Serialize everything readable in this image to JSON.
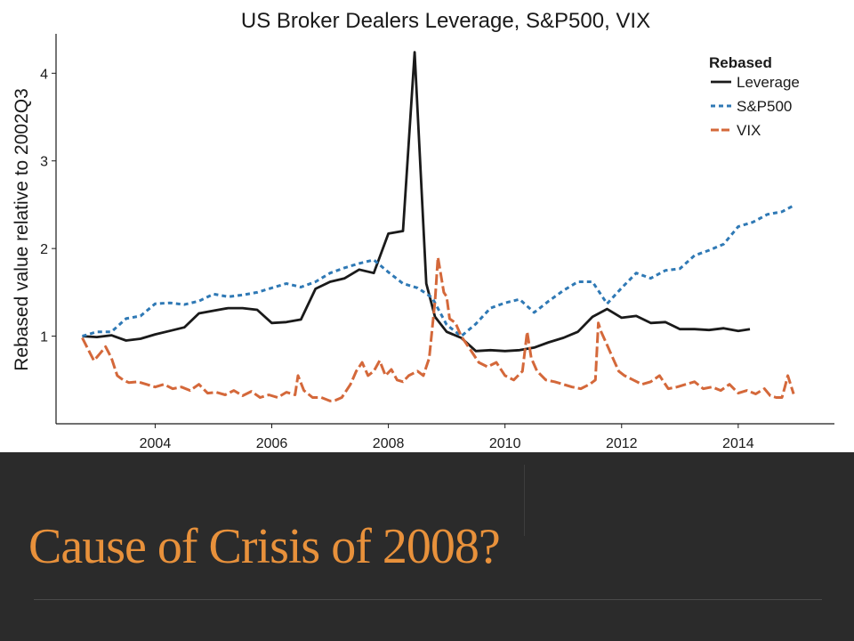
{
  "slide": {
    "title": "Cause of Crisis of 2008?"
  },
  "chart_data": {
    "type": "line",
    "title": "US Broker Dealers Leverage, S&P500, VIX",
    "xlabel": "",
    "ylabel": "Rebased value relative to 2002Q3",
    "xlim": [
      2002.3,
      2015.65
    ],
    "ylim": [
      0,
      4.45
    ],
    "x_ticks": [
      2004,
      2006,
      2008,
      2010,
      2012,
      2014
    ],
    "x_tick_labels": [
      "2004",
      "2006",
      "2008",
      "2010",
      "2012",
      "2014"
    ],
    "y_ticks": [
      1,
      2,
      3,
      4
    ],
    "y_tick_labels": [
      "1",
      "2",
      "3",
      "4"
    ],
    "grid": false,
    "legend": {
      "title": "Rebased",
      "position": "top-right",
      "entries": [
        "Leverage",
        "S&P500",
        "VIX"
      ]
    },
    "series": [
      {
        "name": "Leverage",
        "color": "#1a1a1a",
        "style": "solid",
        "x": [
          2002.75,
          2003.0,
          2003.25,
          2003.5,
          2003.75,
          2004.0,
          2004.25,
          2004.5,
          2004.75,
          2005.0,
          2005.25,
          2005.5,
          2005.75,
          2006.0,
          2006.25,
          2006.5,
          2006.75,
          2007.0,
          2007.25,
          2007.5,
          2007.75,
          2008.0,
          2008.25,
          2008.45,
          2008.65,
          2008.8,
          2009.0,
          2009.25,
          2009.5,
          2009.75,
          2010.0,
          2010.25,
          2010.5,
          2010.75,
          2011.0,
          2011.25,
          2011.5,
          2011.75,
          2012.0,
          2012.25,
          2012.5,
          2012.75,
          2013.0,
          2013.25,
          2013.5,
          2013.75,
          2014.0,
          2014.2
        ],
        "values": [
          1.0,
          0.99,
          1.01,
          0.95,
          0.97,
          1.02,
          1.06,
          1.1,
          1.26,
          1.29,
          1.32,
          1.32,
          1.3,
          1.15,
          1.16,
          1.19,
          1.54,
          1.62,
          1.66,
          1.76,
          1.72,
          2.17,
          2.2,
          4.24,
          1.6,
          1.22,
          1.05,
          0.98,
          0.83,
          0.84,
          0.83,
          0.84,
          0.87,
          0.93,
          0.98,
          1.05,
          1.22,
          1.31,
          1.21,
          1.23,
          1.15,
          1.16,
          1.08,
          1.08,
          1.07,
          1.09,
          1.06,
          1.08
        ]
      },
      {
        "name": "S&P500",
        "color": "#2f79b5",
        "style": "dashed",
        "x": [
          2002.75,
          2003.0,
          2003.25,
          2003.5,
          2003.75,
          2004.0,
          2004.25,
          2004.5,
          2004.75,
          2005.0,
          2005.25,
          2005.5,
          2005.75,
          2006.0,
          2006.25,
          2006.5,
          2006.75,
          2007.0,
          2007.25,
          2007.5,
          2007.75,
          2008.0,
          2008.25,
          2008.5,
          2008.75,
          2009.0,
          2009.25,
          2009.5,
          2009.75,
          2010.0,
          2010.25,
          2010.5,
          2010.75,
          2011.0,
          2011.25,
          2011.5,
          2011.75,
          2012.0,
          2012.25,
          2012.5,
          2012.75,
          2013.0,
          2013.25,
          2013.5,
          2013.75,
          2014.0,
          2014.25,
          2014.5,
          2014.75,
          2014.95
        ],
        "values": [
          1.0,
          1.05,
          1.05,
          1.2,
          1.23,
          1.37,
          1.38,
          1.36,
          1.4,
          1.48,
          1.45,
          1.47,
          1.5,
          1.55,
          1.6,
          1.56,
          1.62,
          1.72,
          1.78,
          1.83,
          1.87,
          1.73,
          1.6,
          1.55,
          1.44,
          1.13,
          1.0,
          1.14,
          1.32,
          1.38,
          1.42,
          1.27,
          1.4,
          1.52,
          1.62,
          1.62,
          1.37,
          1.55,
          1.72,
          1.66,
          1.75,
          1.77,
          1.92,
          1.98,
          2.05,
          2.25,
          2.3,
          2.39,
          2.42,
          2.49
        ]
      },
      {
        "name": "VIX",
        "color": "#d4683a",
        "style": "longdash",
        "x": [
          2002.75,
          2002.85,
          2002.95,
          2003.05,
          2003.15,
          2003.25,
          2003.35,
          2003.45,
          2003.55,
          2003.7,
          2003.85,
          2004.0,
          2004.15,
          2004.3,
          2004.45,
          2004.6,
          2004.75,
          2004.9,
          2005.05,
          2005.2,
          2005.35,
          2005.5,
          2005.65,
          2005.8,
          2005.95,
          2006.1,
          2006.25,
          2006.4,
          2006.45,
          2006.55,
          2006.7,
          2006.85,
          2007.0,
          2007.1,
          2007.2,
          2007.35,
          2007.45,
          2007.55,
          2007.65,
          2007.75,
          2007.85,
          2007.95,
          2008.05,
          2008.15,
          2008.25,
          2008.35,
          2008.5,
          2008.6,
          2008.7,
          2008.8,
          2008.85,
          2008.9,
          2008.95,
          2009.0,
          2009.05,
          2009.15,
          2009.25,
          2009.4,
          2009.55,
          2009.7,
          2009.85,
          2010.0,
          2010.15,
          2010.3,
          2010.38,
          2010.45,
          2010.55,
          2010.7,
          2010.85,
          2011.0,
          2011.15,
          2011.3,
          2011.45,
          2011.55,
          2011.6,
          2011.65,
          2011.75,
          2011.85,
          2011.95,
          2012.05,
          2012.2,
          2012.35,
          2012.5,
          2012.65,
          2012.8,
          2012.95,
          2013.1,
          2013.25,
          2013.4,
          2013.55,
          2013.7,
          2013.85,
          2014.0,
          2014.15,
          2014.3,
          2014.45,
          2014.55,
          2014.65,
          2014.75,
          2014.8,
          2014.85,
          2014.95
        ],
        "values": [
          0.98,
          0.85,
          0.72,
          0.8,
          0.88,
          0.75,
          0.55,
          0.5,
          0.47,
          0.48,
          0.45,
          0.42,
          0.45,
          0.4,
          0.42,
          0.38,
          0.45,
          0.35,
          0.36,
          0.33,
          0.38,
          0.32,
          0.37,
          0.3,
          0.33,
          0.3,
          0.36,
          0.33,
          0.55,
          0.38,
          0.3,
          0.3,
          0.26,
          0.27,
          0.3,
          0.45,
          0.6,
          0.7,
          0.55,
          0.6,
          0.72,
          0.55,
          0.62,
          0.5,
          0.48,
          0.55,
          0.6,
          0.55,
          0.75,
          1.4,
          1.9,
          1.7,
          1.5,
          1.45,
          1.2,
          1.15,
          1.0,
          0.85,
          0.7,
          0.65,
          0.7,
          0.55,
          0.5,
          0.6,
          1.05,
          0.75,
          0.6,
          0.5,
          0.48,
          0.45,
          0.42,
          0.4,
          0.45,
          0.5,
          1.15,
          1.05,
          0.9,
          0.75,
          0.6,
          0.55,
          0.5,
          0.45,
          0.48,
          0.55,
          0.4,
          0.42,
          0.45,
          0.48,
          0.4,
          0.42,
          0.38,
          0.45,
          0.35,
          0.38,
          0.34,
          0.4,
          0.32,
          0.3,
          0.3,
          0.42,
          0.55,
          0.34
        ]
      }
    ]
  }
}
